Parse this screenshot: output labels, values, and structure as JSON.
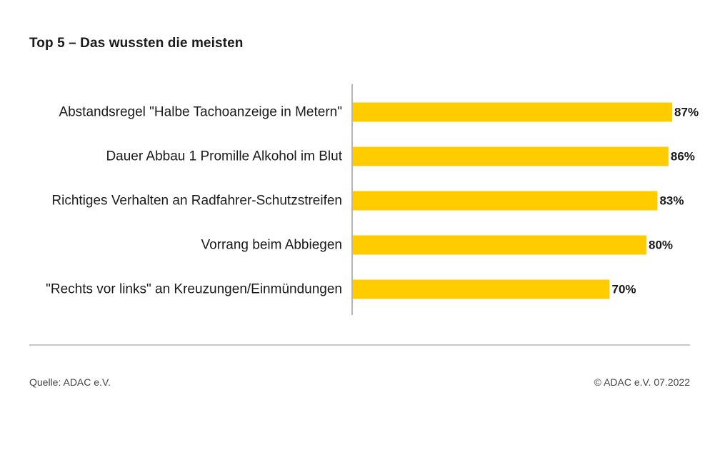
{
  "title": "Top 5 – Das wussten die meisten",
  "colors": {
    "bar": "#FFCC00",
    "axis": "#b5b5b5"
  },
  "chart_data": {
    "type": "bar",
    "orientation": "horizontal",
    "categories": [
      "Abstandsregel \"Halbe Tachoanzeige in Metern\"",
      "Dauer Abbau 1 Promille Alkohol im Blut",
      "Richtiges Verhalten an Radfahrer-Schutzstreifen",
      "Vorrang beim Abbiegen",
      "\"Rechts vor links\" an Kreuzungen/Einmündungen"
    ],
    "values": [
      87,
      86,
      83,
      80,
      70
    ],
    "value_labels": [
      "87%",
      "86%",
      "83%",
      "80%",
      "70%"
    ],
    "unit": "%",
    "xlim": [
      0,
      100
    ],
    "grid": false
  },
  "footer": {
    "source": "Quelle: ADAC e.V.",
    "copyright": "© ADAC e.V. 07.2022"
  }
}
